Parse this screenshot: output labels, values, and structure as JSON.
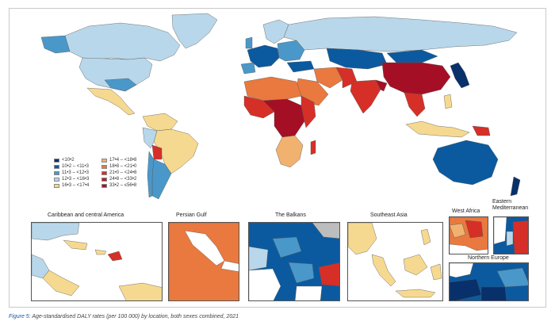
{
  "colors": {
    "ocean": "#ffffff",
    "c1": "#08306b",
    "c2": "#0b5aa0",
    "c3": "#4a98c9",
    "c4": "#b8d7ea",
    "c5": "#f6d990",
    "c6": "#f0b26e",
    "c7": "#e9793f",
    "c8": "#d62f27",
    "c9": "#a50f26",
    "border": "#555555"
  },
  "legend": {
    "items": [
      {
        "label": "<10•2",
        "color": "#08306b"
      },
      {
        "label": "10•2 – <11•3",
        "color": "#0b5aa0"
      },
      {
        "label": "11•3 – <12•3",
        "color": "#4a98c9"
      },
      {
        "label": "12•3 – <16•3",
        "color": "#b8d7ea"
      },
      {
        "label": "16•3 – <17•4",
        "color": "#f6d990"
      },
      {
        "label": "17•4 – <18•8",
        "color": "#f0b26e"
      },
      {
        "label": "18•8 – <21•0",
        "color": "#e9793f"
      },
      {
        "label": "21•0 – <24•8",
        "color": "#d62f27"
      },
      {
        "label": "24•8 – <33•2",
        "color": "#b81f24"
      },
      {
        "label": "33•2 – ≤56•8",
        "color": "#a50f26"
      }
    ]
  },
  "insets": [
    {
      "title": "Caribbean and central America"
    },
    {
      "title": "Persian Gulf"
    },
    {
      "title": "The Balkans"
    },
    {
      "title": "Southeast Asia"
    },
    {
      "title": "West Africa"
    },
    {
      "title": "Eastern Mediterranean"
    },
    {
      "title": "Northern Europe"
    }
  ],
  "caption": {
    "lead": "Figure 5:",
    "text": "Age-standardised DALY rates (per 100 000) by location, both sexes combined, 2021"
  }
}
